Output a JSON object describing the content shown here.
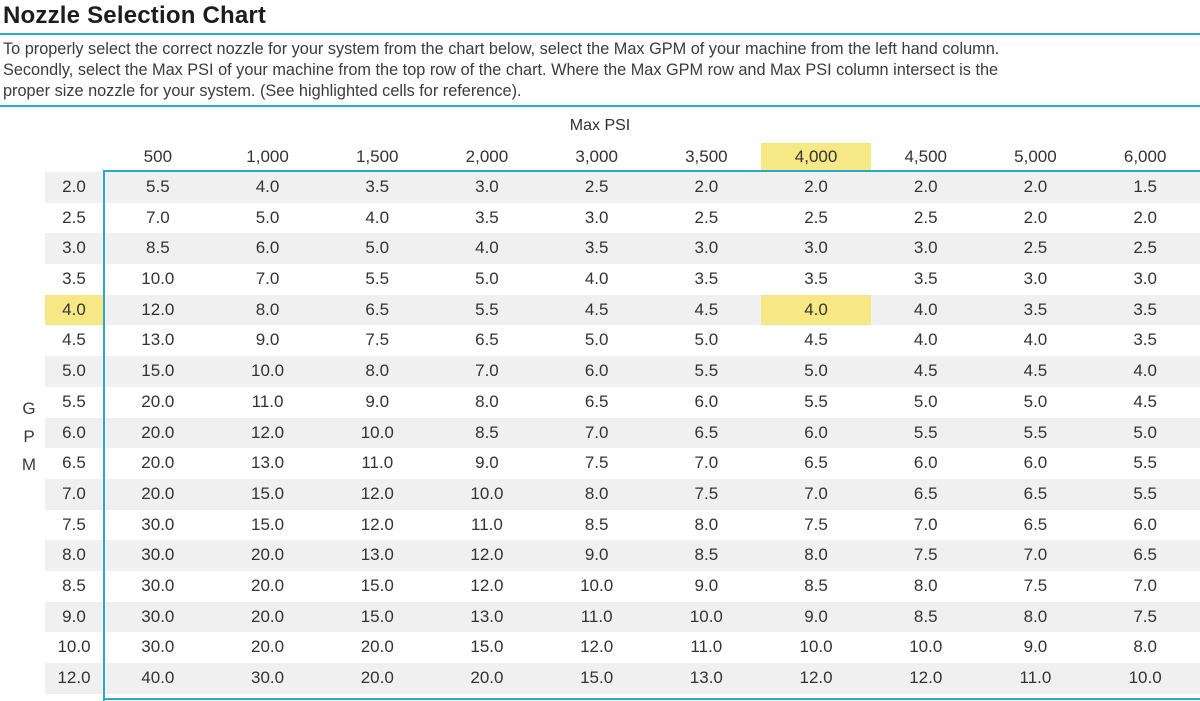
{
  "title": "Nozzle Selection Chart",
  "description_lines": [
    "To properly select the correct nozzle for your system from the chart below, select the Max GPM of your machine from the left hand column.",
    "Secondly, select the Max PSI of your machine from the top row of the chart. Where the Max GPM row and Max PSI column intersect is the",
    "proper size nozzle for your system. (See highlighted cells for reference)."
  ],
  "colors": {
    "accent_cyan": "#2aaac8",
    "highlight_yellow": "#f6e985",
    "row_stripe": "#f0f0f1"
  },
  "chart_data": {
    "type": "table",
    "title": "Nozzle Selection Chart",
    "column_axis_label": "Max PSI",
    "row_axis_label": "GPM",
    "columns": [
      "500",
      "1,000",
      "1,500",
      "2,000",
      "3,000",
      "3,500",
      "4,000",
      "4,500",
      "5,000",
      "6,000"
    ],
    "highlighted_column": "4,000",
    "highlighted_row": "4.0",
    "rows": [
      {
        "gpm": "2.0",
        "values": [
          "5.5",
          "4.0",
          "3.5",
          "3.0",
          "2.5",
          "2.0",
          "2.0",
          "2.0",
          "2.0",
          "1.5"
        ]
      },
      {
        "gpm": "2.5",
        "values": [
          "7.0",
          "5.0",
          "4.0",
          "3.5",
          "3.0",
          "2.5",
          "2.5",
          "2.5",
          "2.0",
          "2.0"
        ]
      },
      {
        "gpm": "3.0",
        "values": [
          "8.5",
          "6.0",
          "5.0",
          "4.0",
          "3.5",
          "3.0",
          "3.0",
          "3.0",
          "2.5",
          "2.5"
        ]
      },
      {
        "gpm": "3.5",
        "values": [
          "10.0",
          "7.0",
          "5.5",
          "5.0",
          "4.0",
          "3.5",
          "3.5",
          "3.5",
          "3.0",
          "3.0"
        ]
      },
      {
        "gpm": "4.0",
        "values": [
          "12.0",
          "8.0",
          "6.5",
          "5.5",
          "4.5",
          "4.5",
          "4.0",
          "4.0",
          "3.5",
          "3.5"
        ]
      },
      {
        "gpm": "4.5",
        "values": [
          "13.0",
          "9.0",
          "7.5",
          "6.5",
          "5.0",
          "5.0",
          "4.5",
          "4.0",
          "4.0",
          "3.5"
        ]
      },
      {
        "gpm": "5.0",
        "values": [
          "15.0",
          "10.0",
          "8.0",
          "7.0",
          "6.0",
          "5.5",
          "5.0",
          "4.5",
          "4.5",
          "4.0"
        ]
      },
      {
        "gpm": "5.5",
        "values": [
          "20.0",
          "11.0",
          "9.0",
          "8.0",
          "6.5",
          "6.0",
          "5.5",
          "5.0",
          "5.0",
          "4.5"
        ]
      },
      {
        "gpm": "6.0",
        "values": [
          "20.0",
          "12.0",
          "10.0",
          "8.5",
          "7.0",
          "6.5",
          "6.0",
          "5.5",
          "5.5",
          "5.0"
        ]
      },
      {
        "gpm": "6.5",
        "values": [
          "20.0",
          "13.0",
          "11.0",
          "9.0",
          "7.5",
          "7.0",
          "6.5",
          "6.0",
          "6.0",
          "5.5"
        ]
      },
      {
        "gpm": "7.0",
        "values": [
          "20.0",
          "15.0",
          "12.0",
          "10.0",
          "8.0",
          "7.5",
          "7.0",
          "6.5",
          "6.5",
          "5.5"
        ]
      },
      {
        "gpm": "7.5",
        "values": [
          "30.0",
          "15.0",
          "12.0",
          "11.0",
          "8.5",
          "8.0",
          "7.5",
          "7.0",
          "6.5",
          "6.0"
        ]
      },
      {
        "gpm": "8.0",
        "values": [
          "30.0",
          "20.0",
          "13.0",
          "12.0",
          "9.0",
          "8.5",
          "8.0",
          "7.5",
          "7.0",
          "6.5"
        ]
      },
      {
        "gpm": "8.5",
        "values": [
          "30.0",
          "20.0",
          "15.0",
          "12.0",
          "10.0",
          "9.0",
          "8.5",
          "8.0",
          "7.5",
          "7.0"
        ]
      },
      {
        "gpm": "9.0",
        "values": [
          "30.0",
          "20.0",
          "15.0",
          "13.0",
          "11.0",
          "10.0",
          "9.0",
          "8.5",
          "8.0",
          "7.5"
        ]
      },
      {
        "gpm": "10.0",
        "values": [
          "30.0",
          "20.0",
          "20.0",
          "15.0",
          "12.0",
          "11.0",
          "10.0",
          "10.0",
          "9.0",
          "8.0"
        ]
      },
      {
        "gpm": "12.0",
        "values": [
          "40.0",
          "30.0",
          "20.0",
          "20.0",
          "15.0",
          "13.0",
          "12.0",
          "12.0",
          "11.0",
          "10.0"
        ]
      }
    ]
  }
}
